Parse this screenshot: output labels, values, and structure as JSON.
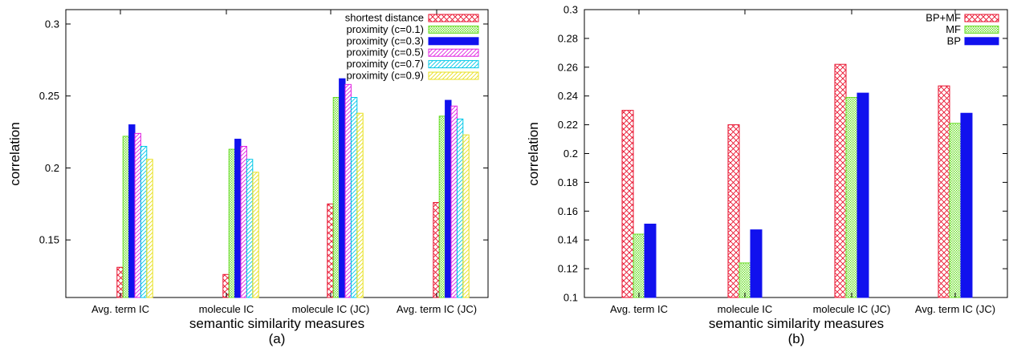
{
  "chart_data": [
    {
      "type": "bar",
      "caption": "(a)",
      "xlabel": "semantic similarity measures",
      "ylabel": "correlation",
      "ylim": [
        0.11,
        0.31
      ],
      "yticks": [
        0.15,
        0.2,
        0.25,
        0.3
      ],
      "ytick_labels": [
        "0.15",
        "0.2",
        "0.25",
        "0.3"
      ],
      "legend_position": "top-right",
      "categories": [
        "Avg. term IC",
        "molecule IC",
        "molecule IC (JC)",
        "Avg. term IC (JC)"
      ],
      "series": [
        {
          "name": "shortest distance",
          "values": [
            0.131,
            0.126,
            0.175,
            0.176
          ],
          "color": "#e8112d",
          "pattern": "crosshatch"
        },
        {
          "name": "proximity (c=0.1)",
          "values": [
            0.222,
            0.213,
            0.249,
            0.236
          ],
          "color": "#66dd22",
          "pattern": "dots"
        },
        {
          "name": "proximity (c=0.3)",
          "values": [
            0.23,
            0.22,
            0.262,
            0.247
          ],
          "color": "#1111ee",
          "pattern": "solid"
        },
        {
          "name": "proximity (c=0.5)",
          "values": [
            0.224,
            0.215,
            0.258,
            0.243
          ],
          "color": "#e020e0",
          "pattern": "diag"
        },
        {
          "name": "proximity (c=0.7)",
          "values": [
            0.215,
            0.206,
            0.249,
            0.234
          ],
          "color": "#00c8e8",
          "pattern": "diag"
        },
        {
          "name": "proximity (c=0.9)",
          "values": [
            0.206,
            0.197,
            0.238,
            0.223
          ],
          "color": "#e8e020",
          "pattern": "diag"
        }
      ]
    },
    {
      "type": "bar",
      "caption": "(b)",
      "xlabel": "semantic similarity measures",
      "ylabel": "correlation",
      "ylim": [
        0.1,
        0.3
      ],
      "yticks": [
        0.1,
        0.12,
        0.14,
        0.16,
        0.18,
        0.2,
        0.22,
        0.24,
        0.26,
        0.28,
        0.3
      ],
      "ytick_labels": [
        "0.1",
        "0.12",
        "0.14",
        "0.16",
        "0.18",
        "0.2",
        "0.22",
        "0.24",
        "0.26",
        "0.28",
        "0.3"
      ],
      "legend_position": "top-right",
      "categories": [
        "Avg. term IC",
        "molecule IC",
        "molecule IC (JC)",
        "Avg. term IC (JC)"
      ],
      "series": [
        {
          "name": "BP+MF",
          "values": [
            0.23,
            0.22,
            0.262,
            0.247
          ],
          "color": "#e8112d",
          "pattern": "crosshatch"
        },
        {
          "name": "MF",
          "values": [
            0.144,
            0.124,
            0.239,
            0.221
          ],
          "color": "#66dd22",
          "pattern": "dots"
        },
        {
          "name": "BP",
          "values": [
            0.151,
            0.147,
            0.242,
            0.228
          ],
          "color": "#1111ee",
          "pattern": "solid"
        }
      ]
    }
  ]
}
